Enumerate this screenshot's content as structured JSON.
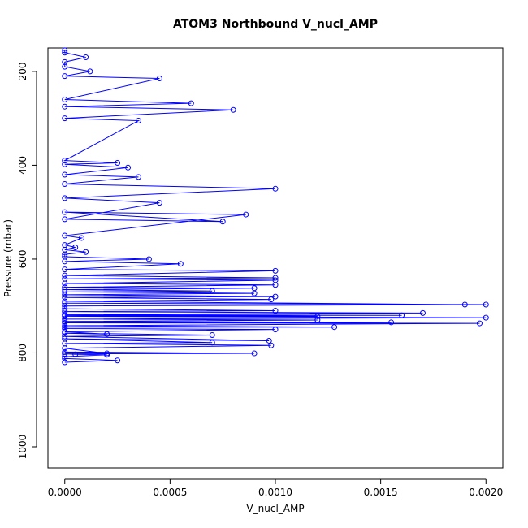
{
  "chart_data": {
    "type": "line",
    "title": "ATOM3 Northbound V_nucl_AMP",
    "xlabel": "V_nucl_AMP",
    "ylabel": "Pressure (mbar)",
    "xlim": [
      -8e-05,
      0.00208
    ],
    "ylim": [
      1045,
      150
    ],
    "y_inverted": true,
    "grid": false,
    "legend": "none",
    "series_color": "#0000ff",
    "x_ticks": [
      {
        "value": 0.0,
        "label": "0.0000"
      },
      {
        "value": 0.0005,
        "label": "0.0005"
      },
      {
        "value": 0.001,
        "label": "0.0010"
      },
      {
        "value": 0.0015,
        "label": "0.0015"
      },
      {
        "value": 0.002,
        "label": "0.0020"
      }
    ],
    "y_ticks": [
      {
        "value": 200,
        "label": "200"
      },
      {
        "value": 400,
        "label": "400"
      },
      {
        "value": 600,
        "label": "600"
      },
      {
        "value": 800,
        "label": "800"
      },
      {
        "value": 1000,
        "label": "1000"
      }
    ],
    "series": [
      {
        "points": [
          [
            0.0,
            820
          ],
          [
            0.00025,
            816
          ],
          [
            0.0,
            812
          ],
          [
            0.0,
            808
          ],
          [
            0.0002,
            804
          ],
          [
            5e-05,
            803
          ],
          [
            0.0,
            802
          ],
          [
            0.0009,
            801
          ],
          [
            0.0,
            798
          ],
          [
            0.0002,
            801
          ],
          [
            0.0,
            790
          ],
          [
            0.00098,
            784
          ],
          [
            0.0,
            780
          ],
          [
            0.0007,
            778
          ],
          [
            0.0,
            770
          ],
          [
            0.00097,
            774
          ],
          [
            0.0,
            765
          ],
          [
            0.0007,
            762
          ],
          [
            0.0,
            758
          ],
          [
            0.0002,
            760
          ],
          [
            0.0,
            755
          ],
          [
            0.001,
            750
          ],
          [
            0.0,
            748
          ],
          [
            0.0,
            745
          ],
          [
            0.00128,
            745
          ],
          [
            0.0,
            742
          ],
          [
            0.00197,
            737
          ],
          [
            0.0,
            736
          ],
          [
            0.00155,
            735
          ],
          [
            0.0,
            733
          ],
          [
            0.0012,
            730
          ],
          [
            0.0,
            728
          ],
          [
            0.002,
            725
          ],
          [
            0.0,
            722
          ],
          [
            0.0012,
            722
          ],
          [
            0.0,
            720
          ],
          [
            0.0016,
            720
          ],
          [
            0.0,
            718
          ],
          [
            0.0017,
            715
          ],
          [
            0.0,
            712
          ],
          [
            0.001,
            710
          ],
          [
            0.0,
            706
          ],
          [
            0.0,
            700
          ],
          [
            0.002,
            697
          ],
          [
            0.0,
            694
          ],
          [
            0.0019,
            697
          ],
          [
            0.0,
            690
          ],
          [
            0.00098,
            686
          ],
          [
            0.0,
            682
          ],
          [
            0.001,
            680
          ],
          [
            0.0,
            676
          ],
          [
            0.0009,
            673
          ],
          [
            0.0,
            670
          ],
          [
            0.0007,
            668
          ],
          [
            0.0,
            665
          ],
          [
            0.0009,
            662
          ],
          [
            0.0,
            660
          ],
          [
            0.001,
            655
          ],
          [
            0.0,
            652
          ],
          [
            0.001,
            645
          ],
          [
            0.0,
            642
          ],
          [
            0.001,
            640
          ],
          [
            0.0,
            635
          ],
          [
            0.001,
            625
          ],
          [
            0.0,
            622
          ],
          [
            0.00055,
            610
          ],
          [
            0.0,
            605
          ],
          [
            0.0004,
            600
          ],
          [
            0.0,
            595
          ],
          [
            0.0,
            590
          ],
          [
            0.0001,
            585
          ],
          [
            0.0,
            580
          ],
          [
            5e-05,
            575
          ],
          [
            0.0,
            570
          ],
          [
            8e-05,
            555
          ],
          [
            0.0,
            550
          ],
          [
            0.00086,
            505
          ],
          [
            0.0,
            500
          ],
          [
            0.00075,
            520
          ],
          [
            0.0,
            515
          ],
          [
            0.00045,
            480
          ],
          [
            0.0,
            470
          ],
          [
            0.001,
            450
          ],
          [
            0.0,
            440
          ],
          [
            0.00035,
            425
          ],
          [
            0.0,
            420
          ],
          [
            0.0003,
            405
          ],
          [
            0.0,
            398
          ],
          [
            0.00025,
            395
          ],
          [
            0.0,
            390
          ],
          [
            0.00035,
            305
          ],
          [
            0.0,
            300
          ],
          [
            0.0008,
            282
          ],
          [
            0.0,
            275
          ],
          [
            0.0006,
            268
          ],
          [
            0.0,
            260
          ],
          [
            0.00045,
            215
          ],
          [
            0.0,
            210
          ],
          [
            0.00012,
            200
          ],
          [
            0.0,
            190
          ],
          [
            0.0,
            180
          ],
          [
            0.0001,
            170
          ],
          [
            0.0,
            160
          ],
          [
            0.0,
            155
          ]
        ]
      }
    ]
  }
}
